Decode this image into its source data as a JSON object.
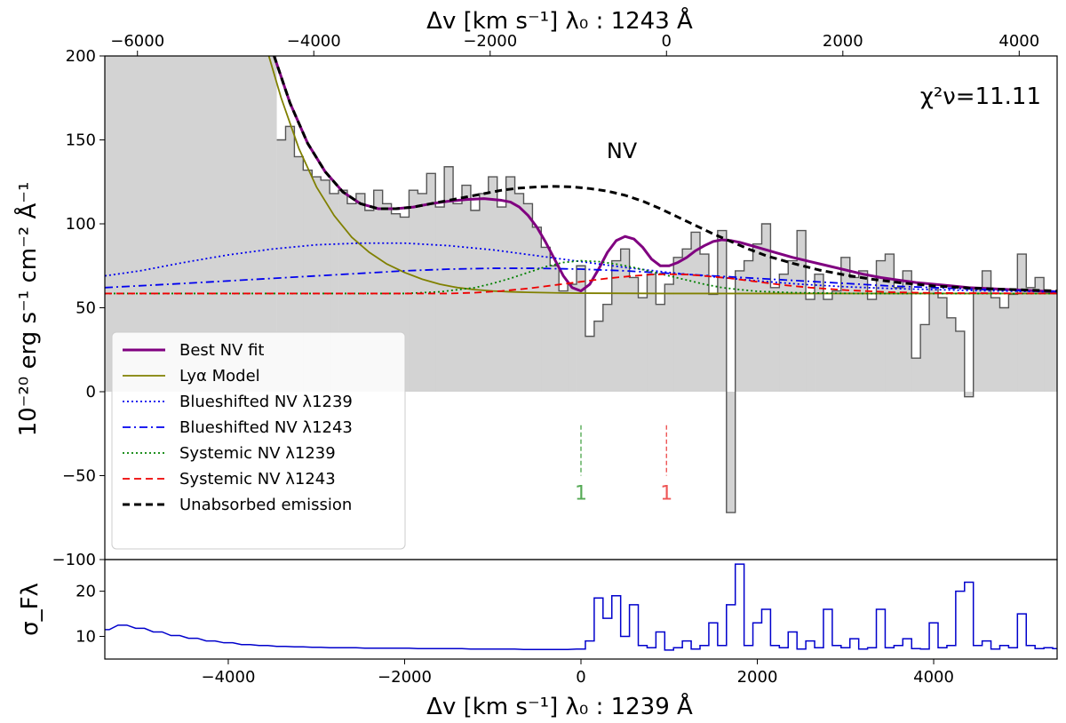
{
  "chart_data": {
    "type": "line",
    "top_axis_label": "Δv [km s⁻¹] λ₀ : 1243 Å",
    "bottom_axis_label": "Δv [km s⁻¹] λ₀ : 1239 Å",
    "ylabel": "10⁻²⁰ erg s⁻¹ cm⁻² Å⁻¹",
    "residual_ylabel": "σ_Fλ",
    "annotation_line": "NV",
    "chi2_label": "χ²ν=11.11",
    "xlim": [
      -5400,
      5400
    ],
    "ylim": [
      -100,
      200
    ],
    "top_xlim": [
      -6370,
      4430
    ],
    "residual_ylim": [
      5,
      27
    ],
    "x_ticks": [
      -4000,
      -2000,
      0,
      2000,
      4000
    ],
    "x_tick_labels": [
      "−4000",
      "−2000",
      "0",
      "2000",
      "4000"
    ],
    "top_x_ticks": [
      -6000,
      -4000,
      -2000,
      0,
      2000,
      4000
    ],
    "top_x_tick_labels": [
      "−6000",
      "−4000",
      "−2000",
      "0",
      "2000",
      "4000"
    ],
    "y_ticks": [
      -100,
      -50,
      0,
      50,
      100,
      150,
      200
    ],
    "y_tick_labels": [
      "−100",
      "−50",
      "0",
      "50",
      "100",
      "150",
      "200"
    ],
    "residual_y_ticks": [
      10,
      20
    ],
    "residual_y_tick_labels": [
      "10",
      "20"
    ],
    "legend_position": "lower-left",
    "markers": [
      {
        "x": 0,
        "label": "1",
        "color": "#55aa55"
      },
      {
        "x": 970,
        "label": "1",
        "color": "#ee5555"
      }
    ],
    "series": [
      {
        "name": "Best NV fit",
        "color": "#800080",
        "style": "solid",
        "width": 3,
        "x": [
          -3480,
          -3300,
          -3100,
          -2900,
          -2700,
          -2500,
          -2300,
          -2100,
          -1900,
          -1700,
          -1500,
          -1300,
          -1100,
          -900,
          -800,
          -700,
          -600,
          -500,
          -400,
          -300,
          -200,
          -100,
          0,
          100,
          200,
          300,
          400,
          500,
          600,
          700,
          800,
          900,
          1000,
          1100,
          1200,
          1300,
          1400,
          1500,
          1600,
          1700,
          1800,
          1900,
          2000,
          2200,
          2400,
          2600,
          2800,
          3000,
          3200,
          3400,
          3600,
          3800,
          4000,
          4200,
          4400,
          4600,
          4800,
          5000,
          5200,
          5400
        ],
        "y": [
          200,
          172,
          148,
          131,
          119,
          112,
          109,
          109,
          110,
          112,
          113.5,
          114.5,
          115,
          114,
          113,
          110,
          105,
          98,
          89,
          79,
          69,
          62,
          60,
          64,
          73,
          83,
          90,
          92.5,
          91,
          86,
          79,
          75,
          75,
          77,
          80,
          84,
          87,
          89.5,
          90.5,
          90,
          89,
          87.5,
          86,
          83,
          80,
          77.5,
          75,
          72.5,
          70,
          68,
          66.5,
          65,
          64,
          63,
          62,
          61.5,
          61,
          60.5,
          60,
          59.5
        ]
      },
      {
        "name": "Lyα Model",
        "color": "#808000",
        "style": "solid",
        "width": 1.8,
        "x": [
          -3540,
          -3400,
          -3200,
          -3000,
          -2800,
          -2600,
          -2400,
          -2200,
          -2000,
          -1800,
          -1600,
          -1400,
          -1200,
          -1000,
          -800,
          -600,
          -400,
          -200,
          0,
          1000,
          2000,
          3000,
          4000,
          5400
        ],
        "y": [
          200,
          175,
          145,
          122,
          105,
          92,
          83,
          76,
          71,
          67,
          64,
          62,
          60.8,
          60,
          59.5,
          59.2,
          59,
          58.8,
          58.7,
          58.5,
          58.5,
          58.5,
          58.5,
          58.5
        ]
      },
      {
        "name": "Blueshifted NV λ1239",
        "color": "#0000ee",
        "style": "dotted",
        "width": 1.8,
        "x": [
          -5400,
          -5000,
          -4500,
          -4000,
          -3500,
          -3000,
          -2500,
          -2000,
          -1500,
          -1000,
          -500,
          0,
          500,
          1000,
          1500,
          2000,
          2500,
          3000,
          3500,
          4000,
          4500,
          5000,
          5400
        ],
        "y": [
          69,
          72,
          77,
          81.5,
          85,
          87.5,
          88.5,
          88.5,
          87,
          84.5,
          81,
          77.5,
          74,
          71,
          68.5,
          66,
          64,
          62.5,
          61.5,
          60.8,
          60.2,
          59.8,
          59.5
        ]
      },
      {
        "name": "Blueshifted NV λ1243",
        "color": "#0000ee",
        "style": "dashdot",
        "width": 1.8,
        "x": [
          -5400,
          -4500,
          -3500,
          -2500,
          -2000,
          -1500,
          -1000,
          -500,
          0,
          500,
          1000,
          1500,
          2000,
          2500,
          3000,
          3500,
          4000,
          4500,
          5000,
          5400
        ],
        "y": [
          62,
          64.5,
          67.5,
          70.5,
          72,
          73,
          73.5,
          73.5,
          73,
          72,
          70.5,
          69,
          67.5,
          66,
          64.5,
          63,
          62,
          61,
          60.3,
          59.8
        ]
      },
      {
        "name": "Systemic NV λ1239",
        "color": "#008000",
        "style": "dotted",
        "width": 1.8,
        "x": [
          -5400,
          -2000,
          -1600,
          -1200,
          -1000,
          -800,
          -600,
          -400,
          -200,
          0,
          200,
          400,
          600,
          800,
          1000,
          1200,
          1400,
          1600,
          1800,
          2000,
          2400,
          2800,
          3200,
          5400
        ],
        "y": [
          58.5,
          58.5,
          59.5,
          62,
          64.5,
          67.5,
          71,
          74.5,
          77,
          78,
          77.5,
          76,
          74,
          71.5,
          69,
          66.5,
          64,
          62,
          60.8,
          59.8,
          59,
          58.7,
          58.5,
          58.5
        ]
      },
      {
        "name": "Systemic NV λ1243",
        "color": "#ee0000",
        "style": "dashed",
        "width": 1.8,
        "x": [
          -5400,
          -1500,
          -1200,
          -900,
          -600,
          -300,
          0,
          300,
          600,
          800,
          1000,
          1200,
          1400,
          1700,
          2000,
          2300,
          2600,
          3000,
          3500,
          4000,
          5400
        ],
        "y": [
          58.5,
          58.5,
          59,
          60,
          61.5,
          63.5,
          65.5,
          67.5,
          69,
          69.8,
          70,
          69.8,
          69,
          67.5,
          65.5,
          63.5,
          62,
          60.5,
          59.3,
          58.8,
          58.5
        ]
      },
      {
        "name": "Unabsorbed emission",
        "color": "#000000",
        "style": "dashed",
        "width": 3,
        "x": [
          -3480,
          -3300,
          -3100,
          -2900,
          -2700,
          -2500,
          -2300,
          -2100,
          -1900,
          -1700,
          -1500,
          -1300,
          -1100,
          -900,
          -700,
          -500,
          -300,
          -100,
          100,
          300,
          500,
          700,
          900,
          1100,
          1300,
          1500,
          1700,
          1900,
          2100,
          2400,
          2700,
          3000,
          3300,
          3600,
          4000,
          4400,
          4800,
          5400
        ],
        "y": [
          200,
          172,
          148,
          131,
          119,
          112,
          109,
          109,
          110,
          112,
          114,
          116,
          118,
          120,
          121.3,
          122,
          122.3,
          122,
          121,
          119.5,
          117,
          113.5,
          109,
          104,
          99,
          94,
          89.5,
          85,
          81,
          76.5,
          72.5,
          69.5,
          67,
          65,
          63,
          61.8,
          61,
          60
        ]
      }
    ],
    "data_spectrum": {
      "color": "#555555",
      "fill": "#d3d3d3",
      "x": [
        -3400,
        -3300,
        -3200,
        -3100,
        -3000,
        -2900,
        -2800,
        -2700,
        -2600,
        -2500,
        -2400,
        -2300,
        -2200,
        -2100,
        -2000,
        -1900,
        -1800,
        -1700,
        -1600,
        -1500,
        -1400,
        -1300,
        -1200,
        -1100,
        -1000,
        -900,
        -800,
        -700,
        -600,
        -500,
        -400,
        -300,
        -200,
        -100,
        0,
        100,
        200,
        300,
        400,
        500,
        600,
        700,
        800,
        900,
        1000,
        1100,
        1200,
        1300,
        1400,
        1500,
        1600,
        1700,
        1800,
        1900,
        2000,
        2100,
        2200,
        2300,
        2400,
        2500,
        2600,
        2700,
        2800,
        2900,
        3000,
        3100,
        3200,
        3300,
        3400,
        3500,
        3600,
        3700,
        3800,
        3900,
        4000,
        4100,
        4200,
        4300,
        4400,
        4500,
        4600,
        4700,
        4800,
        4900,
        5000,
        5100,
        5200,
        5300
      ],
      "y": [
        150,
        158,
        140,
        132,
        128,
        126,
        118,
        120,
        112,
        118,
        108,
        120,
        112,
        106,
        104,
        120,
        118,
        130,
        110,
        134,
        112,
        123,
        108,
        118,
        128,
        110,
        128,
        118,
        112,
        98,
        86,
        75,
        60,
        64,
        75,
        33,
        42,
        52,
        78,
        85,
        68,
        56,
        70,
        52,
        64,
        80,
        85,
        95,
        82,
        58,
        96,
        -72,
        72,
        78,
        88,
        100,
        62,
        70,
        78,
        96,
        55,
        70,
        55,
        60,
        80,
        68,
        72,
        55,
        78,
        82,
        62,
        72,
        20,
        40,
        62,
        56,
        44,
        36,
        -3,
        62,
        72,
        56,
        50,
        58,
        82,
        62,
        68,
        60
      ]
    },
    "residual_series": {
      "color": "#0000cc",
      "x": [
        -5400,
        -5200,
        -5000,
        -4800,
        -4600,
        -4400,
        -4200,
        -4000,
        -3800,
        -3600,
        -3400,
        -3200,
        -3000,
        -2800,
        -2600,
        -2400,
        -2200,
        -2000,
        -1800,
        -1600,
        -1400,
        -1200,
        -1000,
        -800,
        -600,
        -400,
        -200,
        0,
        100,
        200,
        300,
        400,
        500,
        600,
        700,
        800,
        900,
        1000,
        1100,
        1200,
        1300,
        1400,
        1500,
        1600,
        1700,
        1800,
        1900,
        2000,
        2100,
        2200,
        2300,
        2400,
        2500,
        2600,
        2700,
        2800,
        2900,
        3000,
        3100,
        3200,
        3300,
        3400,
        3500,
        3600,
        3700,
        3800,
        3900,
        4000,
        4100,
        4200,
        4300,
        4400,
        4500,
        4600,
        4700,
        4800,
        4900,
        5000,
        5100,
        5200,
        5300,
        5400
      ],
      "y": [
        11.5,
        12.5,
        11.8,
        11,
        10.2,
        9.6,
        9,
        8.6,
        8.2,
        8,
        7.8,
        7.7,
        7.6,
        7.5,
        7.5,
        7.4,
        7.4,
        7.4,
        7.3,
        7.3,
        7.3,
        7.2,
        7.2,
        7.2,
        7.1,
        7.1,
        7.1,
        7.2,
        9,
        18.5,
        14,
        19,
        10,
        17,
        8,
        7.5,
        11,
        7,
        7.5,
        9,
        7.2,
        8,
        13,
        8,
        17,
        26,
        8,
        13,
        16,
        8,
        7.5,
        11,
        7.2,
        9,
        7.5,
        16,
        8,
        7.5,
        9.5,
        7.2,
        7.5,
        16,
        7.5,
        8,
        9.5,
        7.3,
        7.2,
        13,
        7.5,
        8,
        20,
        22,
        8,
        9,
        7.2,
        8,
        7.5,
        15,
        8,
        7.3,
        7.5,
        7.3
      ]
    }
  }
}
